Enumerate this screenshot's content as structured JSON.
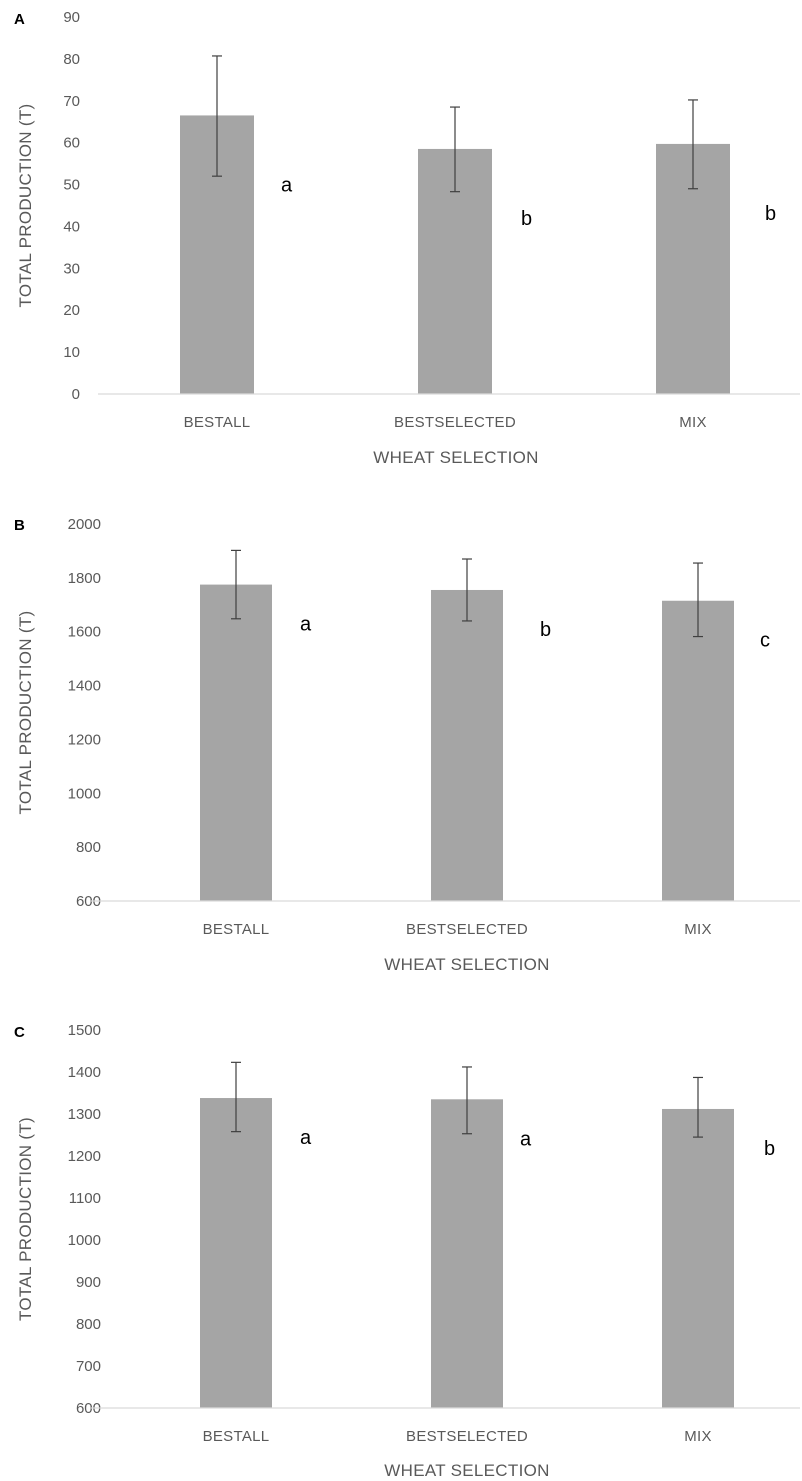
{
  "chart_data": [
    {
      "panel": "A",
      "type": "bar",
      "categories": [
        "BESTALL",
        "BESTSELECTED",
        "MIX"
      ],
      "values": [
        66.5,
        58.5,
        59.7
      ],
      "error_low": [
        52.0,
        48.3,
        49.0
      ],
      "error_high": [
        80.7,
        68.5,
        70.2
      ],
      "significance": [
        "a",
        "b",
        "b"
      ],
      "xlabel": "WHEAT SELECTION",
      "ylabel": "TOTAL PRODUCTION (T)",
      "ylim": [
        0,
        90
      ],
      "yticks": [
        0,
        10,
        20,
        30,
        40,
        50,
        60,
        70,
        80,
        90
      ],
      "bar_color": "#a5a5a5",
      "grid": false
    },
    {
      "panel": "B",
      "type": "bar",
      "categories": [
        "BESTALL",
        "BESTSELECTED",
        "MIX"
      ],
      "values": [
        1775,
        1755,
        1715
      ],
      "error_low": [
        1648,
        1640,
        1582
      ],
      "error_high": [
        1902,
        1870,
        1855
      ],
      "significance": [
        "a",
        "b",
        "c"
      ],
      "xlabel": "WHEAT SELECTION",
      "ylabel": "TOTAL PRODUCTION (T)",
      "ylim": [
        600,
        2000
      ],
      "yticks": [
        600,
        800,
        1000,
        1200,
        1400,
        1600,
        1800,
        2000
      ],
      "bar_color": "#a5a5a5",
      "grid": false
    },
    {
      "panel": "C",
      "type": "bar",
      "categories": [
        "BESTALL",
        "BESTSELECTED",
        "MIX"
      ],
      "values": [
        1338,
        1335,
        1312
      ],
      "error_low": [
        1258,
        1253,
        1245
      ],
      "error_high": [
        1423,
        1412,
        1387
      ],
      "significance": [
        "a",
        "a",
        "b"
      ],
      "xlabel": "WHEAT SELECTION",
      "ylabel": "TOTAL PRODUCTION (T)",
      "ylim": [
        600,
        1500
      ],
      "yticks": [
        600,
        700,
        800,
        900,
        1000,
        1100,
        1200,
        1300,
        1400,
        1500
      ],
      "bar_color": "#a5a5a5",
      "grid": false
    }
  ]
}
